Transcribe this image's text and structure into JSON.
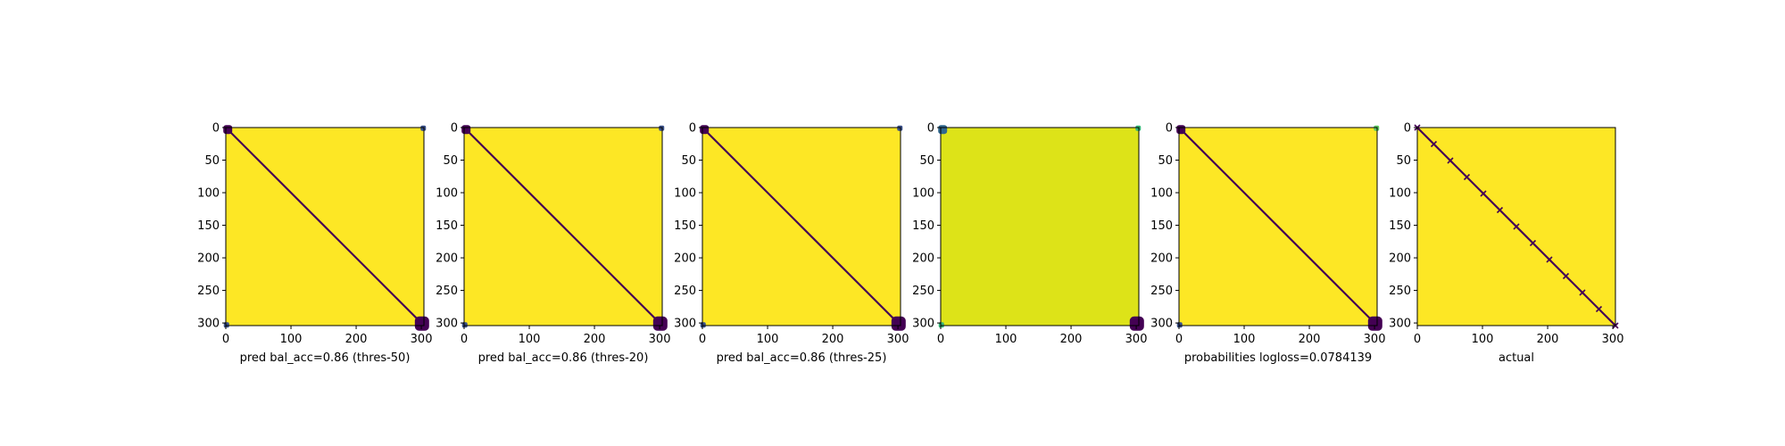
{
  "chart_data": [
    {
      "type": "heatmap",
      "matrix_size": 304,
      "xlabel": "pred bal_acc=0.86 (thres-50)",
      "xticks": [
        0,
        100,
        200,
        300
      ],
      "yticks": [
        0,
        50,
        100,
        150,
        200,
        250,
        300
      ],
      "xlim": [
        0,
        304
      ],
      "ylim": [
        304,
        0
      ],
      "background_color": "#fde725",
      "diagonal_color": "#440154",
      "corner_blobs": [
        {
          "corner": "top-left",
          "color": "#440154",
          "size": "small"
        },
        {
          "corner": "bottom-right",
          "color": "#440154",
          "size": "medium"
        },
        {
          "corner": "bottom-left",
          "color": "#3b528b",
          "size": "tiny"
        },
        {
          "corner": "top-right",
          "color": "#3b528b",
          "size": "tiny"
        }
      ]
    },
    {
      "type": "heatmap",
      "matrix_size": 304,
      "xlabel": "pred bal_acc=0.86 (thres-20)",
      "xticks": [
        0,
        100,
        200,
        300
      ],
      "yticks": [
        0,
        50,
        100,
        150,
        200,
        250,
        300
      ],
      "xlim": [
        0,
        304
      ],
      "ylim": [
        304,
        0
      ],
      "background_color": "#fde725",
      "diagonal_color": "#440154",
      "corner_blobs": [
        {
          "corner": "top-left",
          "color": "#440154",
          "size": "small"
        },
        {
          "corner": "bottom-right",
          "color": "#440154",
          "size": "medium"
        },
        {
          "corner": "bottom-left",
          "color": "#3b528b",
          "size": "tiny"
        },
        {
          "corner": "top-right",
          "color": "#3b528b",
          "size": "tiny"
        }
      ]
    },
    {
      "type": "heatmap",
      "matrix_size": 304,
      "xlabel": "pred bal_acc=0.86 (thres-25)",
      "xticks": [
        0,
        100,
        200,
        300
      ],
      "yticks": [
        0,
        50,
        100,
        150,
        200,
        250,
        300
      ],
      "xlim": [
        0,
        304
      ],
      "ylim": [
        304,
        0
      ],
      "background_color": "#fde725",
      "diagonal_color": "#440154",
      "corner_blobs": [
        {
          "corner": "top-left",
          "color": "#440154",
          "size": "small"
        },
        {
          "corner": "bottom-right",
          "color": "#440154",
          "size": "medium"
        },
        {
          "corner": "bottom-left",
          "color": "#3b528b",
          "size": "tiny"
        },
        {
          "corner": "top-right",
          "color": "#3b528b",
          "size": "tiny"
        }
      ]
    },
    {
      "type": "heatmap",
      "matrix_size": 304,
      "xlabel": "",
      "xticks": [
        0,
        100,
        200,
        300
      ],
      "yticks": [
        0,
        50,
        100,
        150,
        200,
        250,
        300
      ],
      "xlim": [
        0,
        304
      ],
      "ylim": [
        304,
        0
      ],
      "background_color": "#dde318",
      "diagonal_color": null,
      "corner_blobs": [
        {
          "corner": "top-left",
          "color": "#31688e",
          "size": "small"
        },
        {
          "corner": "bottom-right",
          "color": "#440154",
          "size": "medium"
        },
        {
          "corner": "bottom-left",
          "color": "#35b779",
          "size": "tiny"
        },
        {
          "corner": "top-right",
          "color": "#35b779",
          "size": "tiny"
        }
      ]
    },
    {
      "type": "heatmap",
      "matrix_size": 304,
      "xlabel": "probabilities logloss=0.0784139",
      "xticks": [
        0,
        100,
        200,
        300
      ],
      "yticks": [
        0,
        50,
        100,
        150,
        200,
        250,
        300
      ],
      "xlim": [
        0,
        304
      ],
      "ylim": [
        304,
        0
      ],
      "background_color": "#fde725",
      "diagonal_color": "#440154",
      "corner_blobs": [
        {
          "corner": "top-left",
          "color": "#440154",
          "size": "small"
        },
        {
          "corner": "bottom-right",
          "color": "#440154",
          "size": "medium"
        },
        {
          "corner": "bottom-left",
          "color": "#3b528b",
          "size": "tiny"
        },
        {
          "corner": "top-right",
          "color": "#5ec962",
          "size": "tiny"
        }
      ]
    },
    {
      "type": "heatmap",
      "matrix_size": 304,
      "xlabel": "actual",
      "xticks": [
        0,
        100,
        200,
        300
      ],
      "yticks": [
        0,
        50,
        100,
        150,
        200,
        250,
        300
      ],
      "xlim": [
        0,
        304
      ],
      "ylim": [
        304,
        0
      ],
      "background_color": "#fde725",
      "diagonal_color": "#440154",
      "diagonal_markers": true,
      "corner_blobs": []
    }
  ]
}
